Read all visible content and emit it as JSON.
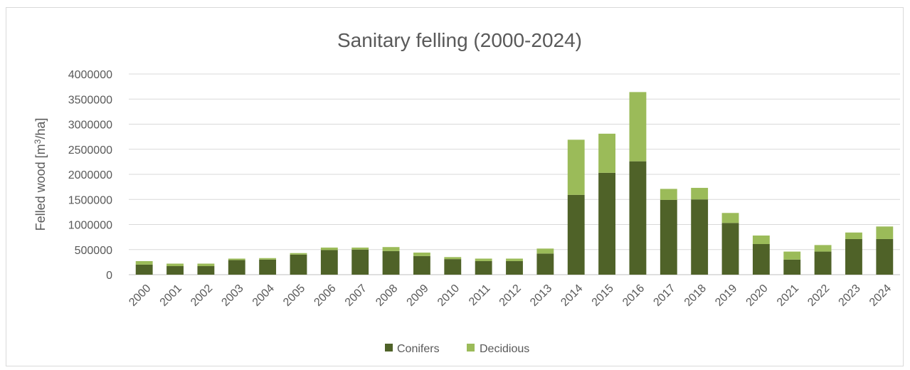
{
  "chart_data": {
    "type": "bar",
    "stacked": true,
    "title": "Sanitary felling (2000-2024)",
    "xlabel": "",
    "ylabel": "Felled wood [m",
    "ylabel_superscript": "3",
    "ylabel_suffix": "/ha]",
    "ylim": [
      0,
      4000000
    ],
    "yticks": [
      0,
      500000,
      1000000,
      1500000,
      2000000,
      2500000,
      3000000,
      3500000,
      4000000
    ],
    "grid": true,
    "legend_position": "bottom",
    "categories": [
      "2000",
      "2001",
      "2002",
      "2003",
      "2004",
      "2005",
      "2006",
      "2007",
      "2008",
      "2009",
      "2010",
      "2011",
      "2012",
      "2013",
      "2014",
      "2015",
      "2016",
      "2017",
      "2018",
      "2019",
      "2020",
      "2021",
      "2022",
      "2023",
      "2024"
    ],
    "series": [
      {
        "name": "Conifers",
        "color": "#4f6228",
        "values": [
          200000,
          170000,
          170000,
          290000,
          300000,
          400000,
          490000,
          500000,
          470000,
          370000,
          310000,
          270000,
          270000,
          420000,
          1590000,
          2030000,
          2260000,
          1490000,
          1500000,
          1030000,
          610000,
          300000,
          460000,
          710000,
          710000
        ]
      },
      {
        "name": "Decidious",
        "color": "#9bbb59",
        "values": [
          70000,
          50000,
          50000,
          30000,
          30000,
          30000,
          50000,
          40000,
          80000,
          70000,
          40000,
          50000,
          50000,
          100000,
          1100000,
          780000,
          1380000,
          220000,
          230000,
          200000,
          170000,
          160000,
          130000,
          130000,
          250000
        ]
      }
    ]
  }
}
